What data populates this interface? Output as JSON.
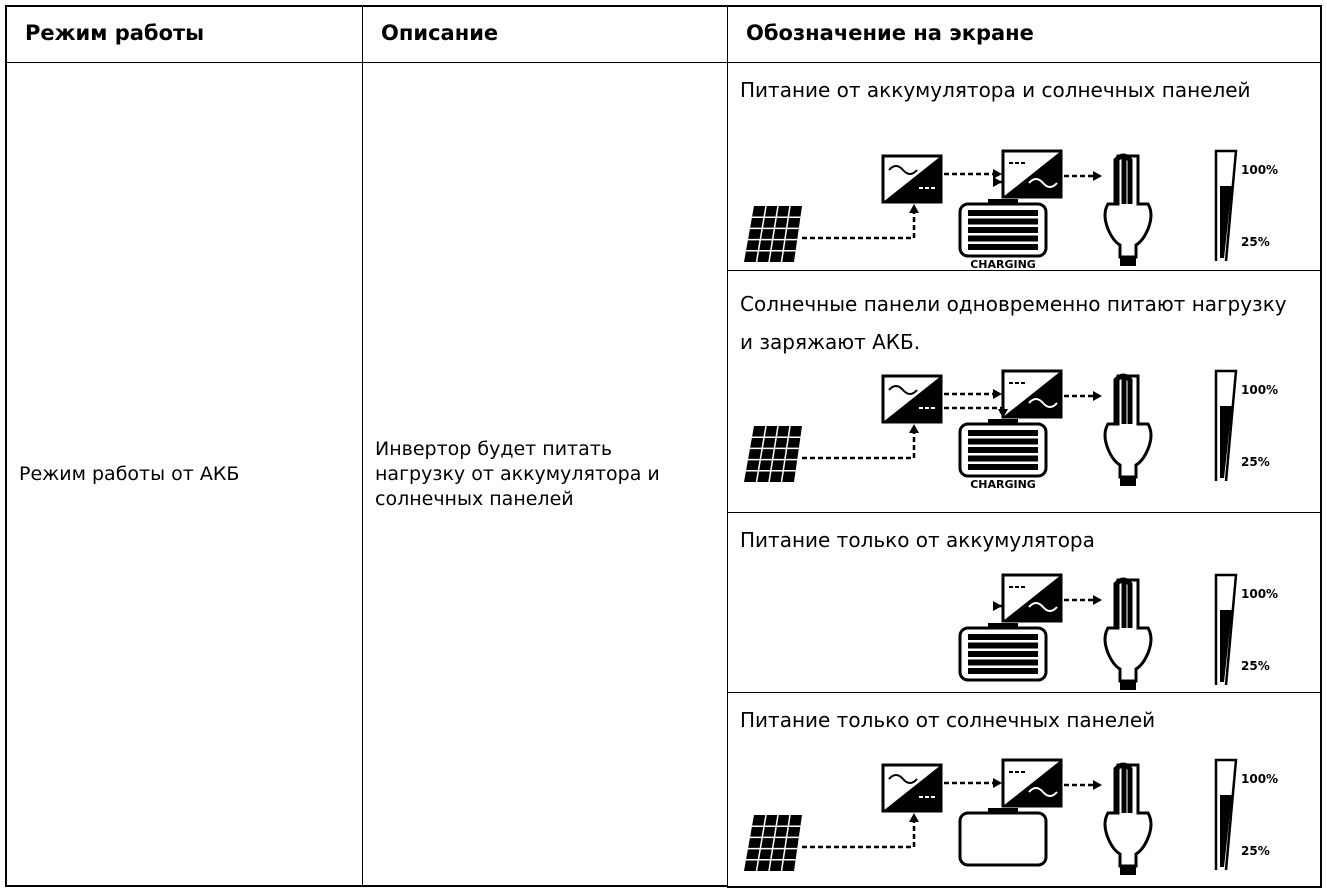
{
  "table": {
    "header": [
      "Режим работы",
      "Описание",
      "Обозначение на экране"
    ],
    "mode": "Режим работы от АКБ",
    "description": "Инвертор будет питать нагрузку от аккумулятора и солнечных панелей",
    "displays": [
      {
        "caption": "Питание от аккумулятора и солнечных панелей",
        "battery_label": "CHARGING",
        "level_top": "100%",
        "level_bottom": "25%"
      },
      {
        "caption": "Солнечные панели одновременно питают нагрузку и заряжают АКБ.",
        "battery_label": "CHARGING",
        "level_top": "100%",
        "level_bottom": "25%"
      },
      {
        "caption": "Питание только от аккумулятора",
        "level_top": "100%",
        "level_bottom": "25%"
      },
      {
        "caption": "Питание только от солнечных панелей",
        "level_top": "100%",
        "level_bottom": "25%"
      }
    ]
  }
}
